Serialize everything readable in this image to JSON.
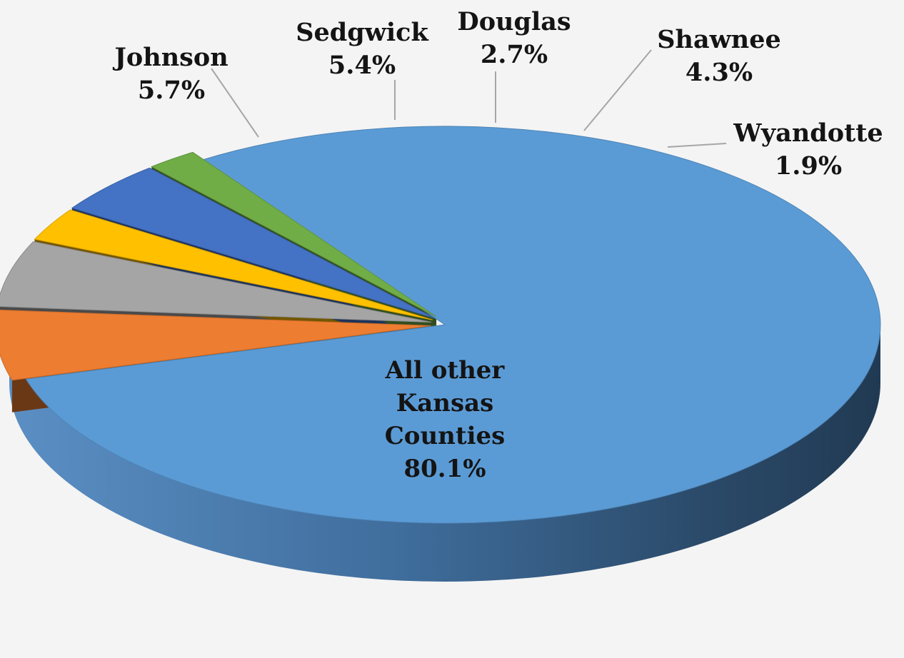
{
  "chart_data": {
    "type": "pie",
    "style": "3d-exploded",
    "title": "",
    "slices": [
      {
        "name": "All other Kansas Counties",
        "value": 80.1,
        "display": "80.1%",
        "color": "#5b9bd5",
        "label_lines": [
          "All other",
          "Kansas",
          "Counties"
        ]
      },
      {
        "name": "Johnson",
        "value": 5.7,
        "display": "5.7%",
        "color": "#ed7d31",
        "label_lines": [
          "Johnson"
        ]
      },
      {
        "name": "Sedgwick",
        "value": 5.4,
        "display": "5.4%",
        "color": "#a5a5a5",
        "label_lines": [
          "Sedgwick"
        ]
      },
      {
        "name": "Douglas",
        "value": 2.7,
        "display": "2.7%",
        "color": "#ffc000",
        "label_lines": [
          "Douglas"
        ]
      },
      {
        "name": "Shawnee",
        "value": 4.3,
        "display": "4.3%",
        "color": "#4472c4",
        "label_lines": [
          "Shawnee"
        ]
      },
      {
        "name": "Wyandotte",
        "value": 1.9,
        "display": "1.9%",
        "color": "#70ad47",
        "label_lines": [
          "Wyandotte"
        ]
      }
    ]
  }
}
